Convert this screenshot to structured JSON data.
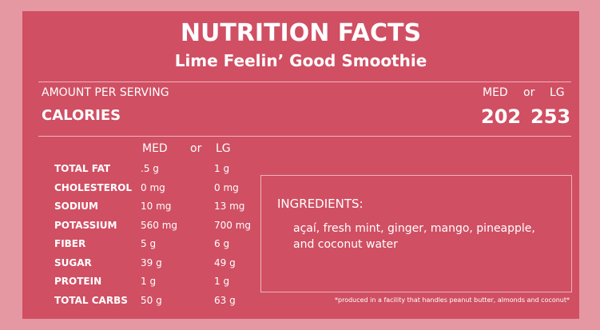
{
  "header": {
    "title": "NUTRITION FACTS",
    "subtitle": "Lime Feelin’ Good Smoothie"
  },
  "serving": {
    "label": "AMOUNT PER SERVING",
    "med": "MED",
    "or": "or",
    "lg": "LG",
    "calories_label": "CALORIES",
    "calories_med": "202",
    "calories_lg": "253"
  },
  "table": {
    "header": [
      "MED",
      "or",
      "LG"
    ],
    "rows": [
      [
        "TOTAL FAT",
        ".5 g",
        "1 g"
      ],
      [
        "CHOLESTEROL",
        "0 mg",
        "0 mg"
      ],
      [
        "SODIUM",
        "10 mg",
        "13 mg"
      ],
      [
        "POTASSIUM",
        "560 mg",
        "700 mg"
      ],
      [
        "FIBER",
        "5 g",
        "6 g"
      ],
      [
        "SUGAR",
        "39 g",
        "49 g"
      ],
      [
        "PROTEIN",
        "1 g",
        "1 g"
      ],
      [
        "TOTAL CARBS",
        "50 g",
        "63 g"
      ]
    ]
  },
  "ingredients": {
    "title": "INGREDIENTS:",
    "text": "açaí, fresh mint, ginger, mango, pineapple, and coconut water"
  },
  "footnote": "*produced in a facility that handles peanut butter, almonds and coconut*"
}
